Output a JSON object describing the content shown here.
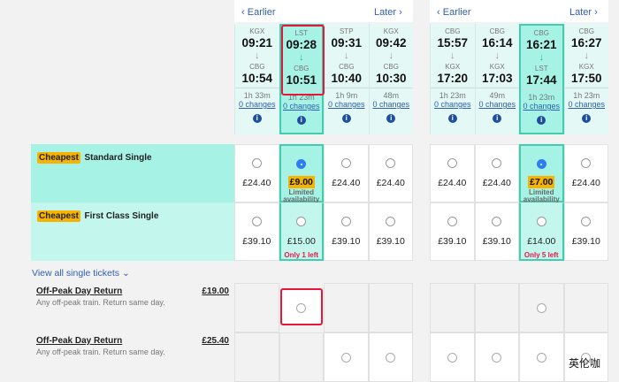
{
  "outbound": {
    "earlier": "Earlier",
    "later": "Later",
    "trains": [
      {
        "from": "KGX",
        "dep": "09:21",
        "to": "CBG",
        "arr": "10:54",
        "duration": "1h 33m",
        "changes": "0 changes",
        "selected": false
      },
      {
        "from": "LST",
        "dep": "09:28",
        "to": "CBG",
        "arr": "10:51",
        "duration": "1h 23m",
        "changes": "0 changes",
        "selected": true
      },
      {
        "from": "STP",
        "dep": "09:31",
        "to": "CBG",
        "arr": "10:40",
        "duration": "1h 9m",
        "changes": "0 changes",
        "selected": false
      },
      {
        "from": "KGX",
        "dep": "09:42",
        "to": "CBG",
        "arr": "10:30",
        "duration": "48m",
        "changes": "0 changes",
        "selected": false
      }
    ],
    "standard": [
      {
        "price": "£24.40"
      },
      {
        "price": "£9.00",
        "note": "Limited availability",
        "checked": true
      },
      {
        "price": "£24.40"
      },
      {
        "price": "£24.40"
      }
    ],
    "first": [
      {
        "price": "£39.10"
      },
      {
        "price": "£15.00",
        "left": "Only 1 left"
      },
      {
        "price": "£39.10"
      },
      {
        "price": "£39.10"
      }
    ]
  },
  "return": {
    "earlier": "Earlier",
    "later": "Later",
    "trains": [
      {
        "from": "CBG",
        "dep": "15:57",
        "to": "KGX",
        "arr": "17:20",
        "duration": "1h 23m",
        "changes": "0 changes",
        "selected": false
      },
      {
        "from": "CBG",
        "dep": "16:14",
        "to": "KGX",
        "arr": "17:03",
        "duration": "49m",
        "changes": "0 changes",
        "selected": false
      },
      {
        "from": "CBG",
        "dep": "16:21",
        "to": "LST",
        "arr": "17:44",
        "duration": "1h 23m",
        "changes": "0 changes",
        "selected": true
      },
      {
        "from": "CBG",
        "dep": "16:27",
        "to": "KGX",
        "arr": "17:50",
        "duration": "1h 23m",
        "changes": "0 changes",
        "selected": false
      }
    ],
    "standard": [
      {
        "price": "£24.40"
      },
      {
        "price": "£24.40"
      },
      {
        "price": "£7.00",
        "note": "Limited availability",
        "checked": true
      },
      {
        "price": "£24.40"
      }
    ],
    "first": [
      {
        "price": "£39.10"
      },
      {
        "price": "£39.10"
      },
      {
        "price": "£14.00",
        "left": "Only 5 left"
      },
      {
        "price": "£39.10"
      }
    ]
  },
  "fares": {
    "cheapest_badge": "Cheapest",
    "standard_label": "Standard Single",
    "first_label": "First Class Single",
    "view_all": "View all single tickets"
  },
  "returns": [
    {
      "name": "Off-Peak Day Return",
      "desc": "Any off-peak train. Return same day.",
      "price": "£19.00",
      "out": [
        false,
        true,
        false,
        false
      ],
      "ret": [
        false,
        false,
        true,
        false
      ]
    },
    {
      "name": "Off-Peak Day Return",
      "desc": "Any off-peak train. Return same day.",
      "price": "£25.40",
      "out": [
        false,
        false,
        true,
        true
      ],
      "ret": [
        true,
        true,
        true,
        true
      ]
    }
  ],
  "watermark": "英伦咖",
  "colors": {
    "accent": "#3fcfb0",
    "selected_bg": "#a6f3e6",
    "badge": "#f6b400",
    "link": "#2f5fb0",
    "warning": "#e8174a"
  }
}
